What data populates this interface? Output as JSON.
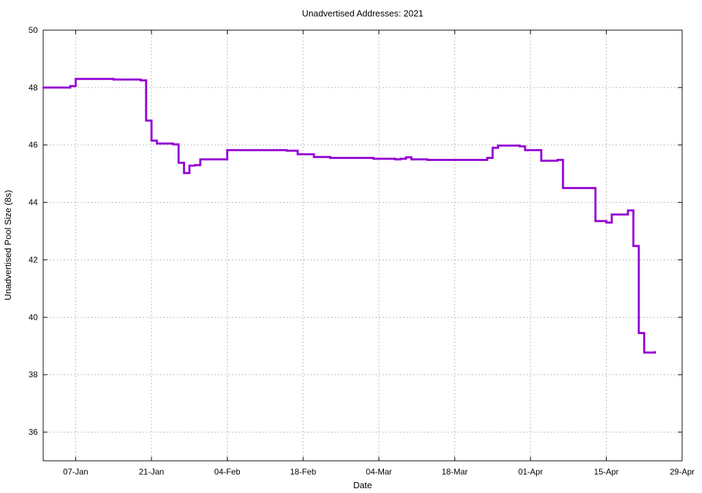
{
  "chart_data": {
    "type": "line",
    "title": "Unadvertised Addresses: 2021",
    "xlabel": "Date",
    "ylabel": "Unadvertised Pool Size (8s)",
    "xlim": [
      "2021-01-01",
      "2021-04-29"
    ],
    "ylim": [
      35,
      50
    ],
    "x_ticks": [
      {
        "date": "2021-01-07",
        "label": "07-Jan"
      },
      {
        "date": "2021-01-21",
        "label": "21-Jan"
      },
      {
        "date": "2021-02-04",
        "label": "04-Feb"
      },
      {
        "date": "2021-02-18",
        "label": "18-Feb"
      },
      {
        "date": "2021-03-04",
        "label": "04-Mar"
      },
      {
        "date": "2021-03-18",
        "label": "18-Mar"
      },
      {
        "date": "2021-04-01",
        "label": "01-Apr"
      },
      {
        "date": "2021-04-15",
        "label": "15-Apr"
      },
      {
        "date": "2021-04-29",
        "label": "29-Apr"
      }
    ],
    "y_ticks": [
      36,
      38,
      40,
      42,
      44,
      46,
      48,
      50
    ],
    "grid": true,
    "line_color": "#9400D3",
    "step": true,
    "series": [
      {
        "x": [
          "2021-01-01",
          "2021-01-04",
          "2021-01-06",
          "2021-01-07",
          "2021-01-12",
          "2021-01-14",
          "2021-01-19",
          "2021-01-20",
          "2021-01-21",
          "2021-01-22",
          "2021-01-25",
          "2021-01-26",
          "2021-01-27",
          "2021-01-28",
          "2021-01-29",
          "2021-01-30",
          "2021-02-04",
          "2021-02-10",
          "2021-02-15",
          "2021-02-16",
          "2021-02-17",
          "2021-02-20",
          "2021-02-23",
          "2021-03-03",
          "2021-03-07",
          "2021-03-08",
          "2021-03-09",
          "2021-03-10",
          "2021-03-13",
          "2021-03-23",
          "2021-03-24",
          "2021-03-25",
          "2021-03-26",
          "2021-03-30",
          "2021-03-31",
          "2021-04-03",
          "2021-04-06",
          "2021-04-07",
          "2021-04-13",
          "2021-04-14",
          "2021-04-15",
          "2021-04-16",
          "2021-04-19",
          "2021-04-20",
          "2021-04-21",
          "2021-04-22",
          "2021-04-24"
        ],
        "y": [
          48.0,
          48.0,
          48.05,
          48.3,
          48.3,
          48.28,
          48.25,
          46.85,
          46.15,
          46.05,
          46.02,
          45.38,
          45.02,
          45.28,
          45.3,
          45.5,
          45.82,
          45.82,
          45.8,
          45.8,
          45.68,
          45.58,
          45.55,
          45.52,
          45.5,
          45.52,
          45.57,
          45.5,
          45.48,
          45.48,
          45.55,
          45.9,
          45.98,
          45.95,
          45.82,
          45.45,
          45.48,
          44.5,
          43.35,
          43.35,
          43.3,
          43.58,
          43.72,
          42.48,
          39.45,
          38.77,
          38.8
        ]
      }
    ]
  }
}
